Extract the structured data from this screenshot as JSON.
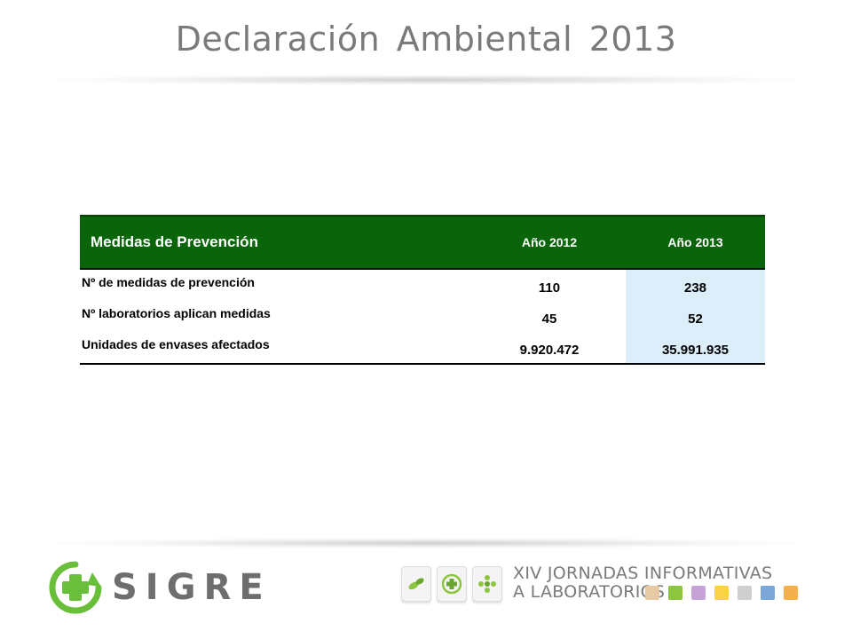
{
  "title": "Declaración Ambiental 2013",
  "table": {
    "headers": [
      "Medidas de Prevención",
      "Año 2012",
      "Año 2013"
    ],
    "rows": [
      {
        "label": "Nº de medidas de prevención",
        "y2012": "110",
        "y2013": "238"
      },
      {
        "label": "Nº laboratorios aplican medidas",
        "y2012": "45",
        "y2013": "52"
      },
      {
        "label": "Unidades de envases afectados",
        "y2012": "9.920.472",
        "y2013": "35.991.935"
      }
    ]
  },
  "footer": {
    "logo_text": "SIGRE",
    "logo_icon": "recycle-cross-icon",
    "badges": [
      "pills-icon",
      "cross-icon",
      "flower-icon"
    ],
    "event_line1": "XIV JORNADAS INFORMATIVAS",
    "event_line2": "A LABORATORIOS",
    "square_colors": [
      "#e8c9a6",
      "#8cc63f",
      "#c5a3d6",
      "#fcd14a",
      "#cfcfcf",
      "#7aa7d8",
      "#f4b04a"
    ]
  },
  "colors": {
    "header_bg": "#0a650a",
    "highlight_col": "#dbeefa",
    "logo_green": "#6abf3a"
  }
}
